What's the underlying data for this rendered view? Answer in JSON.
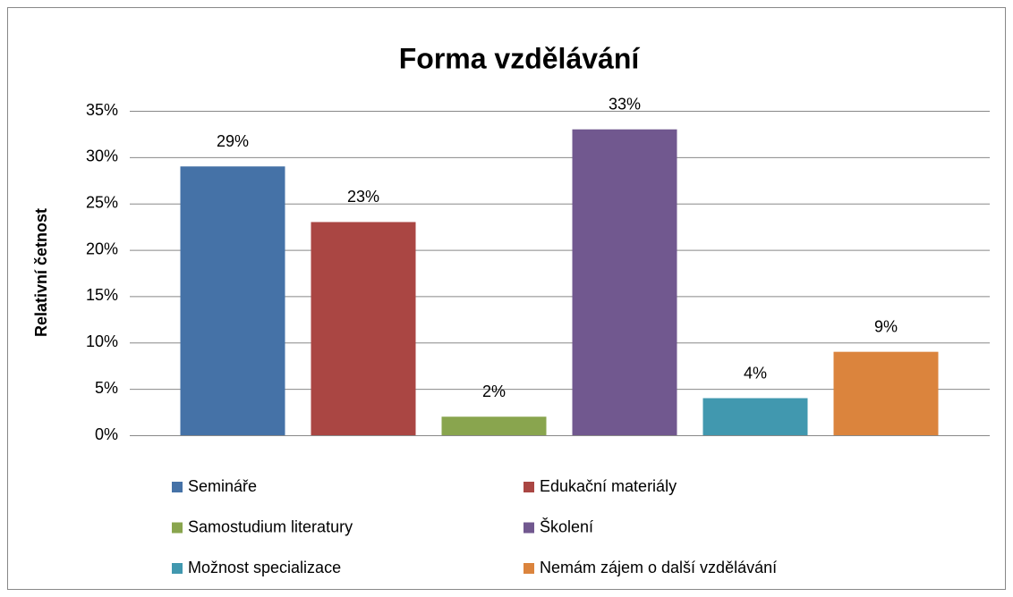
{
  "chart_data": {
    "type": "bar",
    "title": "Forma vzdělávání",
    "y_label": "Relativní četnost",
    "categories": [
      "Semináře",
      "Edukační materiály",
      "Samostudium literatury",
      "Školení",
      "Možnost specializace",
      "Nemám zájem o další vzdělávání"
    ],
    "values": [
      29,
      23,
      2,
      33,
      4,
      9
    ],
    "value_labels": [
      "29%",
      "23%",
      "2%",
      "33%",
      "4%",
      "9%"
    ],
    "colors": [
      "#4572a7",
      "#aa4643",
      "#89a54e",
      "#71588f",
      "#4198af",
      "#db843d"
    ],
    "ylim": [
      0,
      35
    ],
    "yticks": [
      {
        "value": 0,
        "label": "0%"
      },
      {
        "value": 5,
        "label": "5%"
      },
      {
        "value": 10,
        "label": "10%"
      },
      {
        "value": 15,
        "label": "15%"
      },
      {
        "value": 20,
        "label": "20%"
      },
      {
        "value": 25,
        "label": "25%"
      },
      {
        "value": 30,
        "label": "30%"
      },
      {
        "value": 35,
        "label": "35%"
      }
    ],
    "grid": true,
    "legend": "bottom"
  }
}
